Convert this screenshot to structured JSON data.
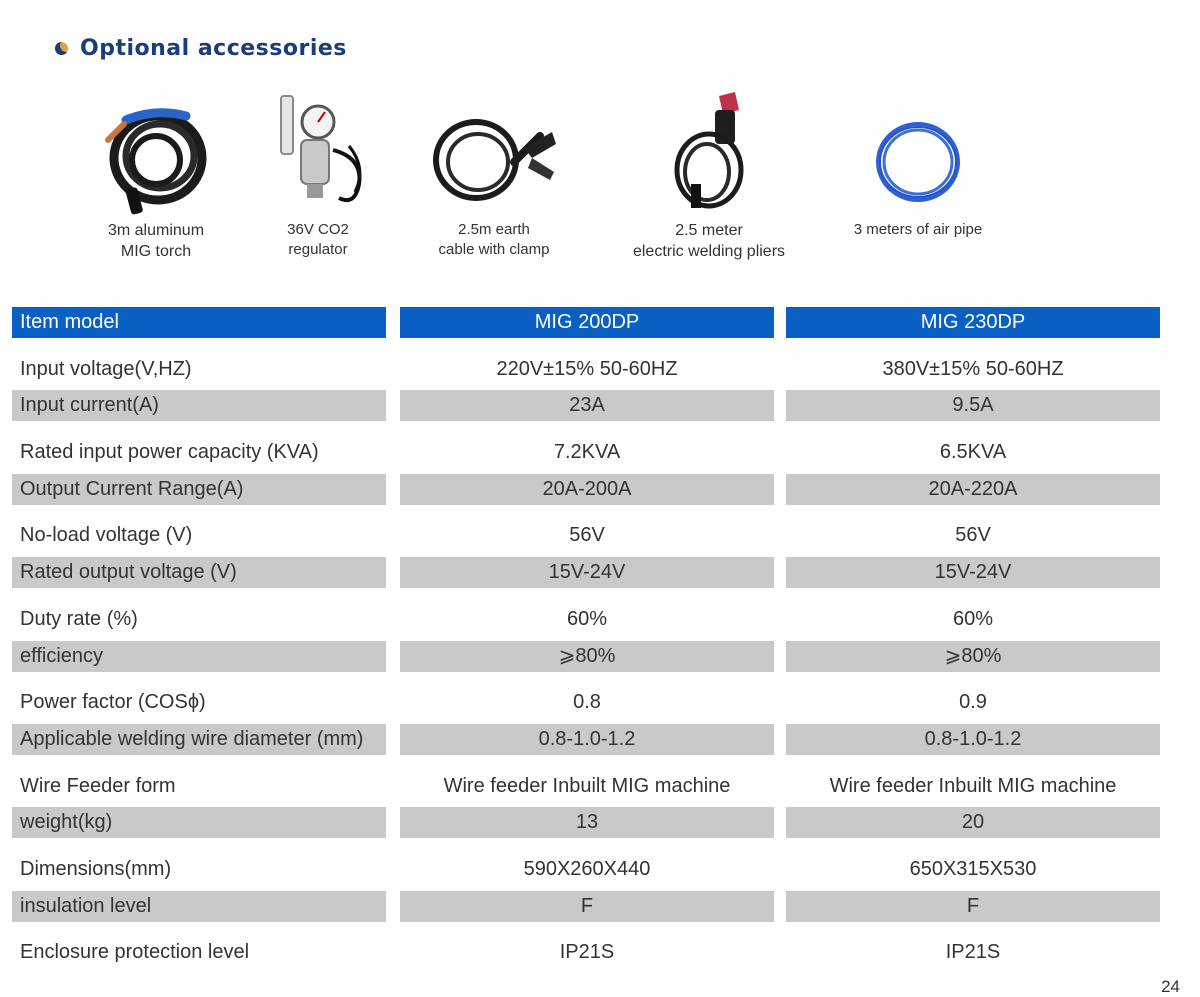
{
  "section": {
    "title": "Optional accessories"
  },
  "accessories": [
    {
      "label": "3m  aluminum\nMIG torch",
      "icon": "mig-torch"
    },
    {
      "label": "36V CO2\nregulator",
      "icon": "co2-regulator"
    },
    {
      "label": "2.5m earth\ncable with clamp",
      "icon": "earth-clamp"
    },
    {
      "label": "2.5 meter\nelectric welding pliers",
      "icon": "welding-pliers"
    },
    {
      "label": "3 meters of air pipe",
      "icon": "air-pipe"
    }
  ],
  "colors": {
    "header_blue": "#0a5fc3",
    "title_blue": "#1a3d7c",
    "row_grey": "#c9c9c9",
    "bullet_orange": "#e8a13a"
  },
  "table": {
    "header": [
      "Item model",
      "MIG  200DP",
      "MIG  230DP"
    ],
    "rows": [
      [
        "Input voltage(V,HZ)",
        "220V±15%   50-60HZ",
        "380V±15%   50-60HZ"
      ],
      [
        "Input current(A)",
        "23A",
        "9.5A"
      ],
      [
        "Rated input power capacity (KVA)",
        "7.2KVA",
        "6.5KVA"
      ],
      [
        "Output Current Range(A)",
        "20A-200A",
        "20A-220A"
      ],
      [
        "No-load voltage (V)",
        "56V",
        "56V"
      ],
      [
        "Rated output voltage (V)",
        "15V-24V",
        "15V-24V"
      ],
      [
        "Duty rate (%)",
        "60%",
        "60%"
      ],
      [
        "efficiency",
        "⩾80%",
        "⩾80%"
      ],
      [
        "Power factor (COSϕ)",
        "0.8",
        "0.9"
      ],
      [
        "Applicable welding wire diameter (mm)",
        "0.8-1.0-1.2",
        "0.8-1.0-1.2"
      ],
      [
        "Wire Feeder form",
        "Wire feeder Inbuilt MIG machine",
        "Wire feeder Inbuilt MIG machine"
      ],
      [
        "weight(kg)",
        "13",
        "20"
      ],
      [
        "Dimensions(mm)",
        "590X260X440",
        "650X315X530"
      ],
      [
        "insulation level",
        "F",
        "F"
      ],
      [
        "Enclosure protection level",
        "IP21S",
        "IP21S"
      ]
    ]
  },
  "page_number": "24"
}
